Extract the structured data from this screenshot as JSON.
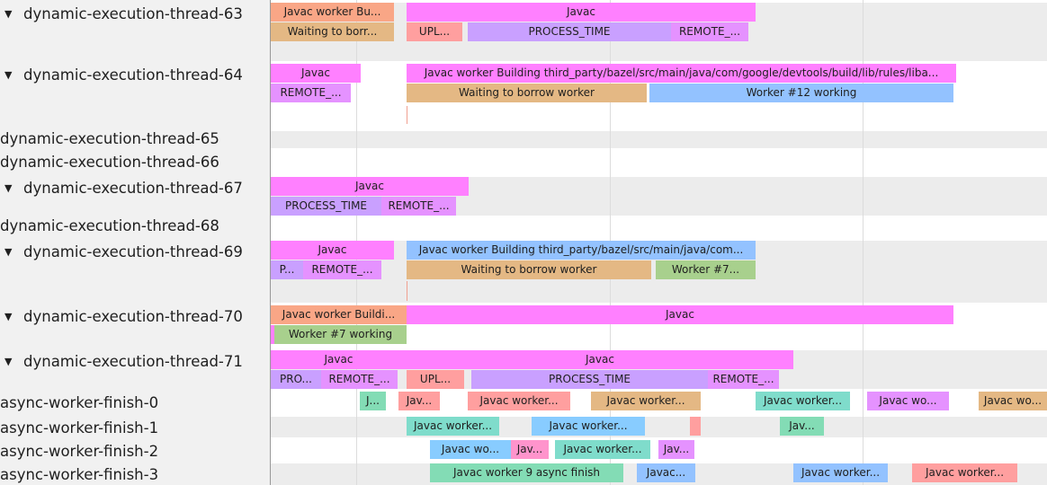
{
  "colors": {
    "javac": "#ff80ff",
    "salmon": "#f9a686",
    "tan": "#e4b884",
    "red": "#ff9f9f",
    "purple": "#c9a0ff",
    "violet": "#e592ff",
    "blue": "#93c2ff",
    "sky": "#88ccff",
    "green": "#a8d08d",
    "mint": "#83dcb5",
    "teal": "#7fdccb",
    "pink": "#ff94cc"
  },
  "tracks": [
    {
      "name": "dynamic-execution-thread-63",
      "expanded": true,
      "slices": [
        {
          "label": "Javac worker Bu...",
          "color": "#f9a686"
        },
        {
          "label": "Javac",
          "color": "#ff80ff"
        },
        {
          "label": "Waiting to borr...",
          "color": "#e4b884"
        },
        {
          "label": "UPL...",
          "color": "#ff9f9f"
        },
        {
          "label": "PROCESS_TIME",
          "color": "#c9a0ff"
        },
        {
          "label": "REMOTE_...",
          "color": "#e592ff"
        }
      ]
    },
    {
      "name": "dynamic-execution-thread-64",
      "expanded": true,
      "slices": [
        {
          "label": "Javac",
          "color": "#ff80ff"
        },
        {
          "label": "Javac worker Building third_party/bazel/src/main/java/com/google/devtools/build/lib/rules/liba...",
          "color": "#ff80ff"
        },
        {
          "label": "REMOTE_...",
          "color": "#e592ff"
        },
        {
          "label": "Waiting to borrow worker",
          "color": "#e4b884"
        },
        {
          "label": "Worker #12 working",
          "color": "#93c2ff"
        }
      ]
    },
    {
      "name": "dynamic-execution-thread-65",
      "expanded": false,
      "slices": []
    },
    {
      "name": "dynamic-execution-thread-66",
      "expanded": false,
      "slices": []
    },
    {
      "name": "dynamic-execution-thread-67",
      "expanded": true,
      "slices": [
        {
          "label": "Javac",
          "color": "#ff80ff"
        },
        {
          "label": "PROCESS_TIME",
          "color": "#c9a0ff"
        },
        {
          "label": "REMOTE_...",
          "color": "#e592ff"
        }
      ]
    },
    {
      "name": "dynamic-execution-thread-68",
      "expanded": false,
      "slices": []
    },
    {
      "name": "dynamic-execution-thread-69",
      "expanded": true,
      "slices": [
        {
          "label": "Javac",
          "color": "#ff80ff"
        },
        {
          "label": "Javac worker Building third_party/bazel/src/main/java/com...",
          "color": "#93c2ff"
        },
        {
          "label": "P...",
          "color": "#c9a0ff"
        },
        {
          "label": "REMOTE_...",
          "color": "#e592ff"
        },
        {
          "label": "Waiting to borrow worker",
          "color": "#e4b884"
        },
        {
          "label": "Worker #7...",
          "color": "#a8d08d"
        }
      ]
    },
    {
      "name": "dynamic-execution-thread-70",
      "expanded": true,
      "slices": [
        {
          "label": "Javac worker Buildi...",
          "color": "#f9a686"
        },
        {
          "label": "Javac",
          "color": "#ff80ff"
        },
        {
          "label": "",
          "color": "#ff80ff"
        },
        {
          "label": "Worker #7 working",
          "color": "#a8d08d"
        }
      ]
    },
    {
      "name": "dynamic-execution-thread-71",
      "expanded": true,
      "slices": [
        {
          "label": "Javac",
          "color": "#ff80ff"
        },
        {
          "label": "Javac",
          "color": "#ff80ff"
        },
        {
          "label": "PRO...",
          "color": "#c9a0ff"
        },
        {
          "label": "REMOTE_...",
          "color": "#e592ff"
        },
        {
          "label": "UPL...",
          "color": "#ff9f9f"
        },
        {
          "label": "PROCESS_TIME",
          "color": "#c9a0ff"
        },
        {
          "label": "REMOTE_...",
          "color": "#e592ff"
        }
      ]
    },
    {
      "name": "async-worker-finish-0",
      "expanded": false,
      "slices": [
        {
          "label": "J...",
          "color": "#83dcb5"
        },
        {
          "label": "Jav...",
          "color": "#ff9f9f"
        },
        {
          "label": "Javac worker...",
          "color": "#ff9f9f"
        },
        {
          "label": "Javac worker...",
          "color": "#e4b884"
        },
        {
          "label": "Javac worker...",
          "color": "#7fdccb"
        },
        {
          "label": "Javac wo...",
          "color": "#e592ff"
        },
        {
          "label": "Javac wo...",
          "color": "#e4b884"
        }
      ]
    },
    {
      "name": "async-worker-finish-1",
      "expanded": false,
      "slices": [
        {
          "label": "Javac worker...",
          "color": "#7fdccb"
        },
        {
          "label": "Javac worker...",
          "color": "#88ccff"
        },
        {
          "label": "",
          "color": "#ff9f9f"
        },
        {
          "label": "Jav...",
          "color": "#83dcb5"
        }
      ]
    },
    {
      "name": "async-worker-finish-2",
      "expanded": false,
      "slices": [
        {
          "label": "Javac wo...",
          "color": "#88ccff"
        },
        {
          "label": "Jav...",
          "color": "#ff94cc"
        },
        {
          "label": "Javac worker...",
          "color": "#7fdccb"
        },
        {
          "label": "Jav...",
          "color": "#e592ff"
        }
      ]
    },
    {
      "name": "async-worker-finish-3",
      "expanded": false,
      "slices": [
        {
          "label": "Javac worker 9 async finish",
          "color": "#83dcb5"
        },
        {
          "label": "Javac...",
          "color": "#93c2ff"
        },
        {
          "label": "Javac worker...",
          "color": "#93c2ff"
        },
        {
          "label": "Javac worker...",
          "color": "#ff9f9f"
        }
      ]
    }
  ]
}
